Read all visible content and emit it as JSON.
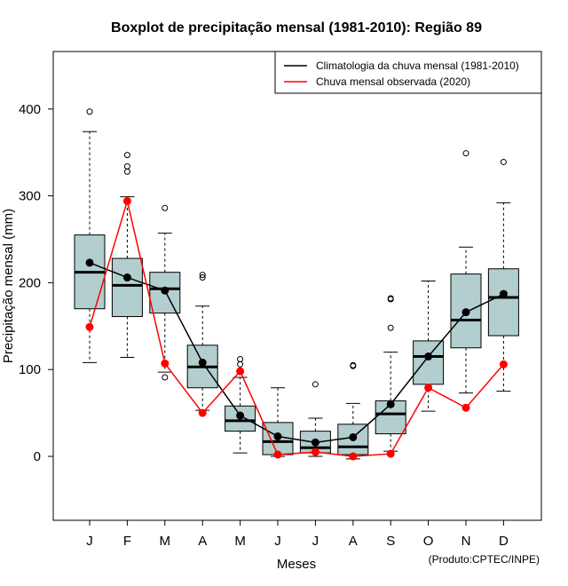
{
  "chart_data": {
    "type": "boxplot",
    "title": "Boxplot de precipitação mensal (1981-2010): Região 89",
    "xlabel": "Meses",
    "ylabel": "Precipitação mensal (mm)",
    "ylim": [
      -72,
      468
    ],
    "yticks": [
      0,
      100,
      200,
      300,
      400
    ],
    "categories": [
      "J",
      "F",
      "M",
      "A",
      "M",
      "J",
      "J",
      "A",
      "S",
      "O",
      "N",
      "D"
    ],
    "boxes": [
      {
        "month": "J",
        "whisker_low": 108,
        "q1": 170,
        "median": 212,
        "q3": 255,
        "whisker_high": 374,
        "outliers": [
          397
        ]
      },
      {
        "month": "F",
        "whisker_low": 114,
        "q1": 161,
        "median": 197,
        "q3": 228,
        "whisker_high": 299,
        "outliers": [
          347,
          334,
          328
        ]
      },
      {
        "month": "M",
        "whisker_low": 97,
        "q1": 165,
        "median": 193,
        "q3": 212,
        "whisker_high": 257,
        "outliers": [
          286,
          91
        ]
      },
      {
        "month": "A",
        "whisker_low": 53,
        "q1": 79,
        "median": 103,
        "q3": 128,
        "whisker_high": 173,
        "outliers": [
          209,
          206
        ]
      },
      {
        "month": "M",
        "whisker_low": 4,
        "q1": 29,
        "median": 41,
        "q3": 58,
        "whisker_high": 91,
        "outliers": [
          112,
          106
        ]
      },
      {
        "month": "J",
        "whisker_low": 0,
        "q1": 2,
        "median": 17,
        "q3": 39,
        "whisker_high": 79,
        "outliers": []
      },
      {
        "month": "J",
        "whisker_low": 0,
        "q1": 4,
        "median": 10,
        "q3": 29,
        "whisker_high": 44,
        "outliers": [
          83
        ]
      },
      {
        "month": "A",
        "whisker_low": -3,
        "q1": 2,
        "median": 11,
        "q3": 37,
        "whisker_high": 61,
        "outliers": [
          105,
          104
        ]
      },
      {
        "month": "S",
        "whisker_low": 6,
        "q1": 26,
        "median": 49,
        "q3": 64,
        "whisker_high": 120,
        "outliers": [
          182,
          181,
          148
        ]
      },
      {
        "month": "O",
        "whisker_low": 52,
        "q1": 83,
        "median": 115,
        "q3": 133,
        "whisker_high": 202,
        "outliers": []
      },
      {
        "month": "N",
        "whisker_low": 73,
        "q1": 125,
        "median": 157,
        "q3": 210,
        "whisker_high": 241,
        "outliers": [
          349
        ]
      },
      {
        "month": "D",
        "whisker_low": 75,
        "q1": 139,
        "median": 183,
        "q3": 216,
        "whisker_high": 292,
        "outliers": [
          339
        ]
      }
    ],
    "series": [
      {
        "name": "Climatologia da chuva mensal (1981-2010)",
        "color": "#000000",
        "values": [
          223,
          206,
          191,
          108,
          47,
          23,
          16,
          22,
          60,
          115,
          166,
          187
        ]
      },
      {
        "name": "Chuva mensal observada (2020)",
        "color": "#ff0000",
        "values": [
          149,
          294,
          107,
          50,
          98,
          2,
          5,
          0,
          3,
          79,
          56,
          106
        ]
      }
    ],
    "legend": "top-right",
    "box_color": "#b2cece",
    "credit": "(Produto:CPTEC/INPE)"
  }
}
